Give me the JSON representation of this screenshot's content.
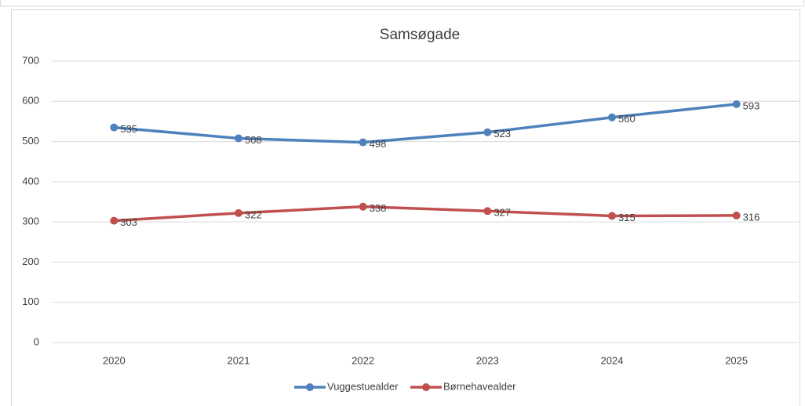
{
  "chart_data": {
    "type": "line",
    "title": "Samsøgade",
    "categories": [
      "2020",
      "2021",
      "2022",
      "2023",
      "2024",
      "2025"
    ],
    "series": [
      {
        "name": "Vuggestuealder",
        "color": "#4f81bd",
        "values": [
          535,
          508,
          498,
          523,
          560,
          593
        ]
      },
      {
        "name": "Børnehavealder",
        "color": "#c0504d",
        "values": [
          303,
          322,
          338,
          327,
          315,
          316
        ]
      }
    ],
    "ylim": [
      0,
      700
    ],
    "yticks": [
      0,
      100,
      200,
      300,
      400,
      500,
      600,
      700
    ],
    "grid": true,
    "legend": "bottom"
  }
}
